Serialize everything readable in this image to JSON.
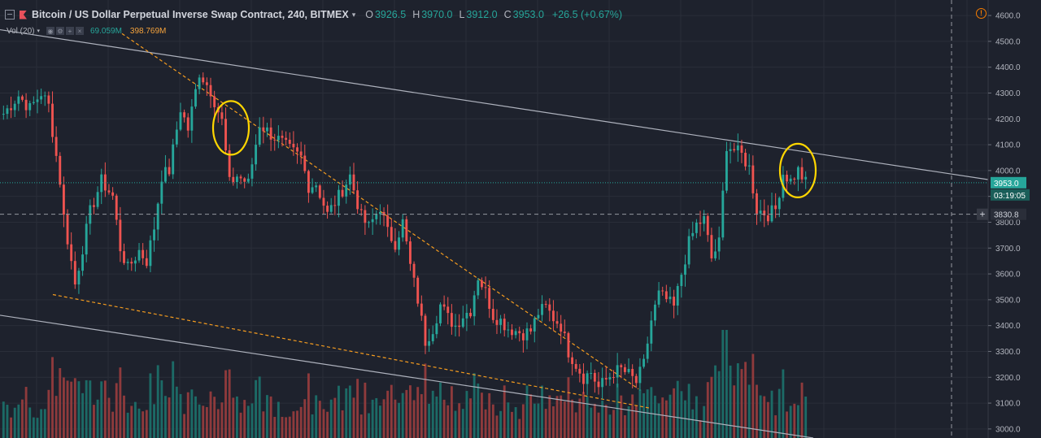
{
  "header": {
    "symbol_title": "Bitcoin / US Dollar Perpetual Inverse Swap Contract, 240, BITMEX",
    "open_label": "O",
    "open": "3926.5",
    "high_label": "H",
    "high": "3970.0",
    "low_label": "L",
    "low": "3912.0",
    "close_label": "C",
    "close": "3953.0",
    "change": "+26.5 (+0.67%)"
  },
  "volume_indicator": {
    "label": "Vol (20)",
    "value1": "69.059M",
    "value2": "398.769M"
  },
  "price_axis": {
    "last_price_label": "3953.0",
    "countdown_label": "03:19:05",
    "crosshair_label": "3830.8",
    "crosshair_plus": "+"
  },
  "chart_data": {
    "type": "candlestick",
    "ylim": [
      2965,
      4660
    ],
    "yticks": [
      "3000.0",
      "3100.0",
      "3200.0",
      "3300.0",
      "3400.0",
      "3500.0",
      "3600.0",
      "3700.0",
      "3800.0",
      "3900.0",
      "4000.0",
      "4100.0",
      "4200.0",
      "4300.0",
      "4400.0",
      "4500.0",
      "4600.0"
    ],
    "last_price": 3953.0,
    "crosshair_price": 3830.8,
    "ohlc_waypoints": [
      [
        0,
        4220
      ],
      [
        4,
        4290
      ],
      [
        7,
        4240
      ],
      [
        10,
        4300
      ],
      [
        12,
        4250
      ],
      [
        15,
        3960
      ],
      [
        16,
        3820
      ],
      [
        19,
        3560
      ],
      [
        21,
        3700
      ],
      [
        23,
        3840
      ],
      [
        26,
        3960
      ],
      [
        29,
        3900
      ],
      [
        31,
        3700
      ],
      [
        33,
        3620
      ],
      [
        36,
        3690
      ],
      [
        38,
        3650
      ],
      [
        40,
        3780
      ],
      [
        42,
        3980
      ],
      [
        44,
        4000
      ],
      [
        47,
        4240
      ],
      [
        49,
        4160
      ],
      [
        52,
        4380
      ],
      [
        55,
        4310
      ],
      [
        58,
        4190
      ],
      [
        60,
        3950
      ],
      [
        62,
        3980
      ],
      [
        65,
        3950
      ],
      [
        68,
        4180
      ],
      [
        71,
        4140
      ],
      [
        73,
        4120
      ],
      [
        76,
        4080
      ],
      [
        79,
        4050
      ],
      [
        81,
        3940
      ],
      [
        83,
        3950
      ],
      [
        86,
        3830
      ],
      [
        89,
        3900
      ],
      [
        92,
        3980
      ],
      [
        95,
        3820
      ],
      [
        97,
        3780
      ],
      [
        100,
        3860
      ],
      [
        102,
        3760
      ],
      [
        104,
        3720
      ],
      [
        106,
        3800
      ],
      [
        108,
        3630
      ],
      [
        110,
        3500
      ],
      [
        112,
        3340
      ],
      [
        114,
        3390
      ],
      [
        116,
        3480
      ],
      [
        118,
        3430
      ],
      [
        120,
        3400
      ],
      [
        122,
        3440
      ],
      [
        124,
        3460
      ],
      [
        126,
        3590
      ],
      [
        128,
        3530
      ],
      [
        130,
        3440
      ],
      [
        132,
        3420
      ],
      [
        134,
        3390
      ],
      [
        136,
        3380
      ],
      [
        138,
        3370
      ],
      [
        140,
        3380
      ],
      [
        142,
        3450
      ],
      [
        144,
        3470
      ],
      [
        146,
        3430
      ],
      [
        148,
        3400
      ],
      [
        150,
        3300
      ],
      [
        152,
        3250
      ],
      [
        154,
        3200
      ],
      [
        156,
        3220
      ],
      [
        158,
        3160
      ],
      [
        160,
        3190
      ],
      [
        162,
        3220
      ],
      [
        164,
        3230
      ],
      [
        166,
        3210
      ],
      [
        168,
        3180
      ],
      [
        170,
        3250
      ],
      [
        172,
        3420
      ],
      [
        174,
        3520
      ],
      [
        176,
        3500
      ],
      [
        178,
        3470
      ],
      [
        180,
        3600
      ],
      [
        182,
        3720
      ],
      [
        184,
        3790
      ],
      [
        186,
        3810
      ],
      [
        188,
        3660
      ],
      [
        190,
        3720
      ],
      [
        192,
        4100
      ],
      [
        194,
        4080
      ],
      [
        196,
        4060
      ],
      [
        198,
        4010
      ],
      [
        200,
        3850
      ],
      [
        203,
        3830
      ],
      [
        205,
        3850
      ],
      [
        207,
        3990
      ],
      [
        209,
        3960
      ],
      [
        211,
        4000
      ],
      [
        213,
        3953
      ]
    ],
    "volume_max": 400,
    "trendlines": [
      {
        "style": "solid",
        "color": "#aeb2bd",
        "from": [
          0,
          4545
        ],
        "to": [
          1215,
          3965
        ]
      },
      {
        "style": "solid",
        "color": "#aeb2bd",
        "from": [
          0,
          3440
        ],
        "to": [
          1000,
          2965
        ]
      },
      {
        "style": "dashed",
        "color": "#f59c1f",
        "from": [
          150,
          4530
        ],
        "to": [
          785,
          3155
        ]
      },
      {
        "style": "dashed",
        "color": "#f59c1f",
        "from": [
          65,
          3520
        ],
        "to": [
          800,
          3080
        ]
      }
    ],
    "highlights": [
      {
        "center": [
          284,
          4165
        ],
        "color": "#ffd600"
      },
      {
        "center": [
          981,
          4000
        ],
        "color": "#ffd600"
      }
    ],
    "colors": {
      "background": "#1e222d",
      "grid": "#2a2e39",
      "up": "#26a69a",
      "down": "#ef5350",
      "up_volume": "#1c6a66",
      "down_volume": "#8e3a3c",
      "axis_text": "#b2b5be",
      "last_price_line": "#26a69a",
      "crosshair": "#9598a1"
    }
  }
}
